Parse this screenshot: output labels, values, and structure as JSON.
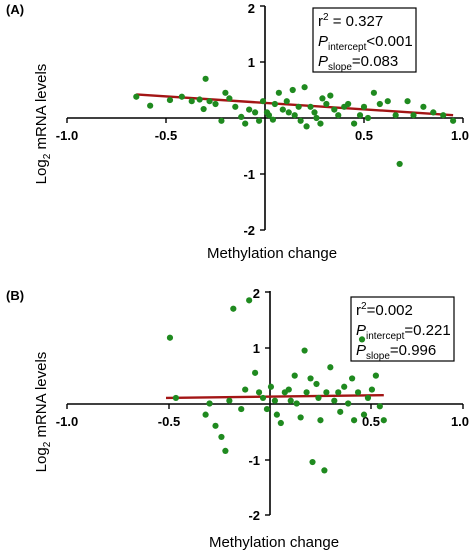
{
  "chart_data": [
    {
      "type": "scatter",
      "panel_label": "(A)",
      "xlabel": "Methylation change",
      "ylabel_main": "Log",
      "ylabel_sub": "2",
      "ylabel_rest": " mRNA levels",
      "xlim": [
        -1.0,
        1.0
      ],
      "ylim": [
        -2,
        2
      ],
      "x_ticks": [
        "-1.0",
        "-0.5",
        "0.5",
        "1.0"
      ],
      "y_ticks": [
        "2",
        "1",
        "-1",
        "-2"
      ],
      "point_color": "#1f8a1f",
      "line_color": "#a31515",
      "regression": {
        "x": [
          -0.65,
          0.95
        ],
        "y": [
          0.42,
          0.05
        ]
      },
      "stats": {
        "r2_label": "r",
        "r2_sup": "2",
        "r2_value": " = 0.327",
        "p_int_label": "P",
        "p_int_sub": "intercept",
        "p_int_value": "<0.001",
        "p_slope_label": "P",
        "p_slope_sub": "slope",
        "p_slope_value": "=0.083"
      },
      "points": [
        [
          -0.65,
          0.38
        ],
        [
          -0.58,
          0.22
        ],
        [
          -0.48,
          0.32
        ],
        [
          -0.42,
          0.38
        ],
        [
          -0.37,
          0.3
        ],
        [
          -0.33,
          0.33
        ],
        [
          -0.31,
          0.16
        ],
        [
          -0.3,
          0.7
        ],
        [
          -0.28,
          0.3
        ],
        [
          -0.25,
          0.25
        ],
        [
          -0.22,
          -0.05
        ],
        [
          -0.2,
          0.45
        ],
        [
          -0.18,
          0.35
        ],
        [
          -0.15,
          0.2
        ],
        [
          -0.12,
          0.02
        ],
        [
          -0.1,
          -0.1
        ],
        [
          -0.08,
          0.15
        ],
        [
          -0.05,
          0.1
        ],
        [
          -0.03,
          -0.05
        ],
        [
          -0.01,
          0.3
        ],
        [
          0.01,
          0.1
        ],
        [
          0.02,
          0.05
        ],
        [
          0.04,
          -0.03
        ],
        [
          0.05,
          0.25
        ],
        [
          0.07,
          0.45
        ],
        [
          0.09,
          0.15
        ],
        [
          0.11,
          0.3
        ],
        [
          0.12,
          0.1
        ],
        [
          0.14,
          0.5
        ],
        [
          0.15,
          0.05
        ],
        [
          0.17,
          0.2
        ],
        [
          0.18,
          -0.05
        ],
        [
          0.2,
          0.55
        ],
        [
          0.21,
          -0.15
        ],
        [
          0.23,
          0.2
        ],
        [
          0.25,
          0.1
        ],
        [
          0.26,
          0.0
        ],
        [
          0.28,
          -0.1
        ],
        [
          0.29,
          0.35
        ],
        [
          0.31,
          0.25
        ],
        [
          0.33,
          0.4
        ],
        [
          0.35,
          0.15
        ],
        [
          0.37,
          0.05
        ],
        [
          0.4,
          0.2
        ],
        [
          0.42,
          0.25
        ],
        [
          0.45,
          -0.1
        ],
        [
          0.48,
          0.05
        ],
        [
          0.5,
          0.2
        ],
        [
          0.52,
          0.0
        ],
        [
          0.55,
          0.45
        ],
        [
          0.58,
          0.25
        ],
        [
          0.62,
          0.3
        ],
        [
          0.66,
          0.05
        ],
        [
          0.68,
          -0.82
        ],
        [
          0.72,
          0.3
        ],
        [
          0.75,
          0.05
        ],
        [
          0.8,
          0.2
        ],
        [
          0.85,
          0.1
        ],
        [
          0.9,
          0.05
        ],
        [
          0.95,
          -0.05
        ]
      ]
    },
    {
      "type": "scatter",
      "panel_label": "(B)",
      "xlabel": "Methylation change",
      "ylabel_main": "Log",
      "ylabel_sub": "2",
      "ylabel_rest": " mRNA levels",
      "xlim": [
        -1.0,
        1.0
      ],
      "ylim": [
        -2,
        2
      ],
      "x_ticks": [
        "-1.0",
        "-0.5",
        "0.5",
        "1.0"
      ],
      "y_ticks": [
        "2",
        "1",
        "-1",
        "-2"
      ],
      "point_color": "#1f8a1f",
      "line_color": "#a31515",
      "regression": {
        "x": [
          -0.5,
          0.6
        ],
        "y": [
          0.1,
          0.15
        ]
      },
      "stats": {
        "r2_label": "r",
        "r2_sup": "2",
        "r2_value": "=0.002",
        "p_int_label": "P",
        "p_int_sub": "intercept",
        "p_int_value": "=0.221",
        "p_slope_label": "P",
        "p_slope_sub": "slope",
        "p_slope_value": "=0.996"
      },
      "points": [
        [
          -0.48,
          1.18
        ],
        [
          -0.45,
          0.1
        ],
        [
          -0.3,
          -0.2
        ],
        [
          -0.28,
          0.0
        ],
        [
          -0.25,
          -0.4
        ],
        [
          -0.22,
          -0.6
        ],
        [
          -0.2,
          -0.85
        ],
        [
          -0.18,
          0.05
        ],
        [
          -0.16,
          1.7
        ],
        [
          -0.12,
          -0.1
        ],
        [
          -0.1,
          0.25
        ],
        [
          -0.08,
          1.85
        ],
        [
          -0.05,
          0.55
        ],
        [
          -0.03,
          0.2
        ],
        [
          -0.01,
          0.1
        ],
        [
          0.01,
          -0.1
        ],
        [
          0.03,
          0.3
        ],
        [
          0.05,
          0.05
        ],
        [
          0.06,
          -0.2
        ],
        [
          0.08,
          -0.35
        ],
        [
          0.1,
          0.2
        ],
        [
          0.12,
          0.25
        ],
        [
          0.13,
          0.05
        ],
        [
          0.15,
          0.5
        ],
        [
          0.16,
          0.0
        ],
        [
          0.18,
          -0.25
        ],
        [
          0.2,
          0.95
        ],
        [
          0.21,
          0.2
        ],
        [
          0.23,
          0.45
        ],
        [
          0.24,
          -1.05
        ],
        [
          0.26,
          0.35
        ],
        [
          0.27,
          0.1
        ],
        [
          0.28,
          -0.3
        ],
        [
          0.3,
          -1.2
        ],
        [
          0.31,
          0.2
        ],
        [
          0.33,
          0.65
        ],
        [
          0.35,
          0.05
        ],
        [
          0.37,
          0.2
        ],
        [
          0.38,
          -0.15
        ],
        [
          0.4,
          0.3
        ],
        [
          0.42,
          0.0
        ],
        [
          0.44,
          0.45
        ],
        [
          0.45,
          -0.3
        ],
        [
          0.47,
          0.2
        ],
        [
          0.49,
          1.15
        ],
        [
          0.5,
          -0.2
        ],
        [
          0.52,
          0.1
        ],
        [
          0.54,
          0.25
        ],
        [
          0.56,
          0.5
        ],
        [
          0.58,
          -0.05
        ],
        [
          0.6,
          -0.3
        ]
      ]
    }
  ]
}
